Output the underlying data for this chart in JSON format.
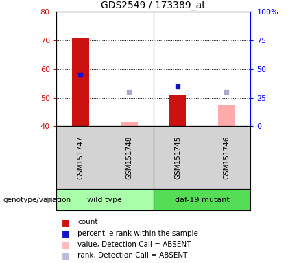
{
  "title": "GDS2549 / 173389_at",
  "samples": [
    "GSM151747",
    "GSM151748",
    "GSM151745",
    "GSM151746"
  ],
  "present": [
    true,
    false,
    true,
    false
  ],
  "bar_values": [
    71,
    41.5,
    51,
    47.5
  ],
  "bar_colors_present": "#cc1111",
  "bar_colors_absent": "#ffaaaa",
  "square_values": [
    58,
    52,
    54,
    52
  ],
  "square_colors_present": "#1111cc",
  "square_colors_absent": "#aaaacc",
  "ylim": [
    40,
    80
  ],
  "yticks_left": [
    40,
    50,
    60,
    70,
    80
  ],
  "ytick_labels_right": [
    "0",
    "25",
    "50",
    "75",
    "100%"
  ],
  "bar_width": 0.35,
  "wt_color": "#aaffaa",
  "mut_color": "#55dd55",
  "sample_bg": "#d3d3d3",
  "legend_items": [
    {
      "label": "count",
      "color": "#cc1111"
    },
    {
      "label": "percentile rank within the sample",
      "color": "#1111cc"
    },
    {
      "label": "value, Detection Call = ABSENT",
      "color": "#ffbbbb"
    },
    {
      "label": "rank, Detection Call = ABSENT",
      "color": "#bbbbdd"
    }
  ]
}
